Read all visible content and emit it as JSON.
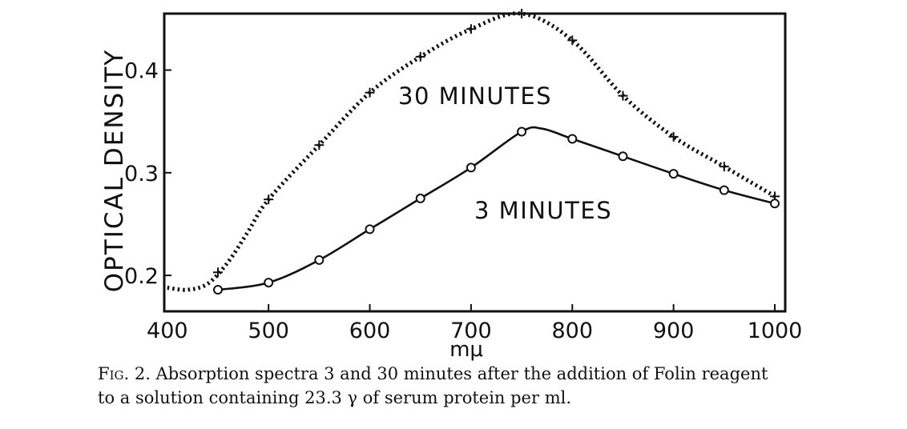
{
  "chart_data": {
    "type": "line",
    "xlabel": "mμ",
    "ylabel": "OPTICAL DENSITY",
    "xlim": [
      400,
      1000
    ],
    "ylim": [
      0.165,
      0.455
    ],
    "x_ticks": [
      400,
      500,
      600,
      700,
      800,
      900,
      1000
    ],
    "x_tick_labels": [
      "400",
      "500",
      "600",
      "700",
      "800",
      "900",
      "1000"
    ],
    "y_ticks": [
      0.2,
      0.3,
      0.4
    ],
    "y_tick_labels": [
      "0.2",
      "0.3",
      "0.4"
    ],
    "grid": false,
    "legend": "none",
    "series": [
      {
        "name": "30 MINUTES",
        "style": "dotted",
        "marker": "cross",
        "x": [
          450,
          500,
          550,
          600,
          650,
          700,
          750,
          800,
          850,
          900,
          950,
          1000
        ],
        "y": [
          0.203,
          0.274,
          0.327,
          0.378,
          0.413,
          0.44,
          0.455,
          0.429,
          0.375,
          0.335,
          0.306,
          0.277
        ],
        "curve_x": [
          400,
          420,
          440,
          460,
          480,
          500,
          550,
          600,
          650,
          700,
          750,
          800,
          850,
          900,
          950,
          1000
        ],
        "curve_y": [
          0.188,
          0.186,
          0.192,
          0.213,
          0.243,
          0.274,
          0.327,
          0.378,
          0.413,
          0.44,
          0.455,
          0.429,
          0.375,
          0.335,
          0.306,
          0.277
        ]
      },
      {
        "name": "3 MINUTES",
        "style": "solid",
        "marker": "circle",
        "x": [
          450,
          500,
          550,
          600,
          650,
          700,
          750,
          800,
          850,
          900,
          950,
          1000
        ],
        "y": [
          0.186,
          0.193,
          0.215,
          0.245,
          0.275,
          0.305,
          0.34,
          0.333,
          0.316,
          0.299,
          0.283,
          0.27
        ],
        "curve_x": [
          450,
          500,
          550,
          600,
          650,
          700,
          750,
          770,
          800,
          850,
          900,
          950,
          1000
        ],
        "curve_y": [
          0.186,
          0.193,
          0.215,
          0.245,
          0.275,
          0.305,
          0.34,
          0.343,
          0.333,
          0.316,
          0.299,
          0.283,
          0.27
        ]
      }
    ],
    "annotations": [
      "30 MINUTES",
      "3 MINUTES"
    ]
  },
  "caption": {
    "label": "Fig. 2.",
    "line1": " Absorption spectra 3 and 30 minutes after the addition of Folin reagent",
    "line2": "to a solution containing 23.3 γ of serum protein per ml."
  }
}
